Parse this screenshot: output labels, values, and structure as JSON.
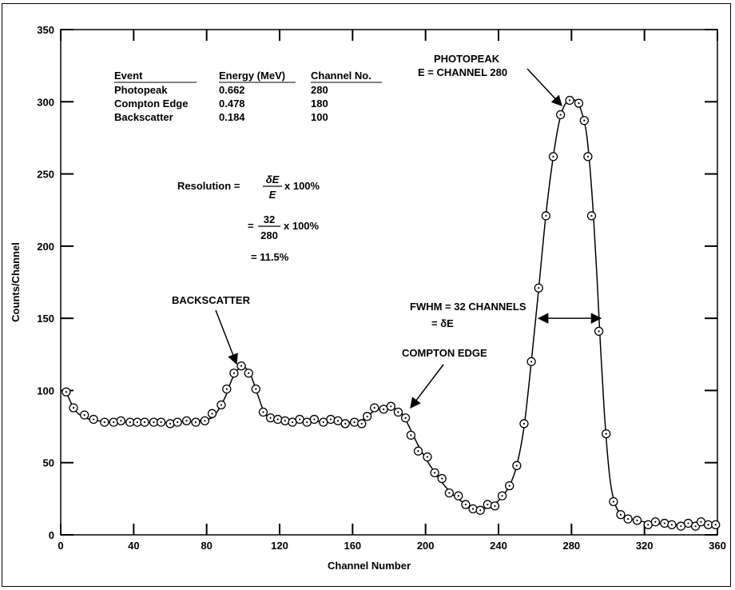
{
  "chart_data": {
    "type": "scatter",
    "title": "",
    "xlabel": "Channel Number",
    "ylabel": "Counts/Channel",
    "xlim": [
      0,
      360
    ],
    "ylim": [
      0,
      350
    ],
    "x_ticks": [
      0,
      40,
      80,
      120,
      160,
      200,
      240,
      280,
      320,
      360
    ],
    "y_ticks": [
      0,
      50,
      100,
      150,
      200,
      250,
      300,
      350
    ],
    "grid": false,
    "series": [
      {
        "marker": "circle-dot",
        "points": [
          [
            3,
            99
          ],
          [
            7,
            88
          ],
          [
            13,
            83
          ],
          [
            18,
            80
          ],
          [
            24,
            78
          ],
          [
            29,
            78
          ],
          [
            33,
            79
          ],
          [
            38,
            78
          ],
          [
            42,
            78
          ],
          [
            46,
            78
          ],
          [
            51,
            78
          ],
          [
            55,
            78
          ],
          [
            60,
            77
          ],
          [
            64,
            78
          ],
          [
            69,
            79
          ],
          [
            74,
            78
          ],
          [
            79,
            79
          ],
          [
            83,
            84
          ],
          [
            88,
            90
          ],
          [
            91,
            101
          ],
          [
            95,
            112
          ],
          [
            99,
            117
          ],
          [
            103,
            112
          ],
          [
            107,
            101
          ],
          [
            111,
            85
          ],
          [
            115,
            81
          ],
          [
            119,
            80
          ],
          [
            123,
            79
          ],
          [
            127,
            78
          ],
          [
            131,
            80
          ],
          [
            135,
            78
          ],
          [
            139,
            80
          ],
          [
            144,
            78
          ],
          [
            148,
            80
          ],
          [
            152,
            79
          ],
          [
            156,
            77
          ],
          [
            161,
            78
          ],
          [
            165,
            77
          ],
          [
            168,
            82
          ],
          [
            172,
            88
          ],
          [
            177,
            87
          ],
          [
            181,
            89
          ],
          [
            185,
            85
          ],
          [
            189,
            81
          ],
          [
            192,
            69
          ],
          [
            196,
            58
          ],
          [
            201,
            54
          ],
          [
            205,
            43
          ],
          [
            209,
            39
          ],
          [
            213,
            29
          ],
          [
            218,
            27
          ],
          [
            222,
            21
          ],
          [
            226,
            18
          ],
          [
            230,
            17
          ],
          [
            234,
            21
          ],
          [
            238,
            20
          ],
          [
            242,
            27
          ],
          [
            246,
            34
          ],
          [
            250,
            48
          ],
          [
            254,
            77
          ],
          [
            258,
            120
          ],
          [
            262,
            171
          ],
          [
            266,
            221
          ],
          [
            270,
            262
          ],
          [
            274,
            291
          ],
          [
            279,
            301
          ],
          [
            284,
            299
          ],
          [
            287,
            287
          ],
          [
            289,
            262
          ],
          [
            291,
            221
          ],
          [
            295,
            141
          ],
          [
            299,
            70
          ],
          [
            303,
            23
          ],
          [
            307,
            14
          ],
          [
            311,
            11
          ],
          [
            316,
            10
          ],
          [
            322,
            7
          ],
          [
            326,
            9
          ],
          [
            331,
            8
          ],
          [
            335,
            7
          ],
          [
            340,
            6
          ],
          [
            344,
            8
          ],
          [
            348,
            6
          ],
          [
            351,
            9
          ],
          [
            355,
            7
          ],
          [
            359,
            7
          ]
        ]
      }
    ],
    "curve": [
      [
        3,
        99
      ],
      [
        8,
        86
      ],
      [
        14,
        81
      ],
      [
        20,
        79
      ],
      [
        40,
        78
      ],
      [
        60,
        78
      ],
      [
        80,
        80
      ],
      [
        85,
        84
      ],
      [
        90,
        95
      ],
      [
        94,
        108
      ],
      [
        98,
        116
      ],
      [
        100,
        117
      ],
      [
        104,
        111
      ],
      [
        108,
        97
      ],
      [
        112,
        84
      ],
      [
        117,
        80
      ],
      [
        130,
        79
      ],
      [
        160,
        78
      ],
      [
        166,
        80
      ],
      [
        172,
        86
      ],
      [
        178,
        88
      ],
      [
        182,
        88
      ],
      [
        187,
        84
      ],
      [
        191,
        75
      ],
      [
        196,
        62
      ],
      [
        202,
        49
      ],
      [
        208,
        38
      ],
      [
        214,
        29
      ],
      [
        220,
        23
      ],
      [
        226,
        19
      ],
      [
        231,
        18
      ],
      [
        236,
        20
      ],
      [
        241,
        25
      ],
      [
        246,
        34
      ],
      [
        250,
        48
      ],
      [
        254,
        75
      ],
      [
        258,
        120
      ],
      [
        262,
        170
      ],
      [
        266,
        222
      ],
      [
        270,
        262
      ],
      [
        274,
        290
      ],
      [
        278,
        301
      ],
      [
        282,
        301
      ],
      [
        285,
        295
      ],
      [
        288,
        280
      ],
      [
        290,
        256
      ],
      [
        292,
        222
      ],
      [
        294,
        178
      ],
      [
        296,
        128
      ],
      [
        298,
        85
      ],
      [
        300,
        52
      ],
      [
        302,
        31
      ],
      [
        305,
        18
      ],
      [
        310,
        12
      ],
      [
        316,
        10
      ],
      [
        325,
        8
      ],
      [
        340,
        7
      ],
      [
        360,
        7
      ]
    ],
    "table": {
      "headers": [
        "Event",
        "Energy (MeV)",
        "Channel No."
      ],
      "rows": [
        [
          "Photopeak",
          "0.662",
          "280"
        ],
        [
          "Compton Edge",
          "0.478",
          "180"
        ],
        [
          "Backscatter",
          "0.184",
          "100"
        ]
      ]
    },
    "formula": {
      "lhs": "Resolution =",
      "frac1_num": "δE",
      "frac1_den": "E",
      "suffix": "x 100%",
      "eq": "=",
      "frac2_num": "32",
      "frac2_den": "280",
      "result": "= 11.5%"
    },
    "annotations": {
      "photopeak_line1": "PHOTOPEAK",
      "photopeak_line2": "E = CHANNEL 280",
      "backscatter": "BACKSCATTER",
      "compton": "COMPTON EDGE",
      "fwhm_line1": "FWHM = 32 CHANNELS",
      "fwhm_line2": "= δE"
    },
    "fwhm_range": [
      262,
      296
    ],
    "fwhm_y": 150
  }
}
